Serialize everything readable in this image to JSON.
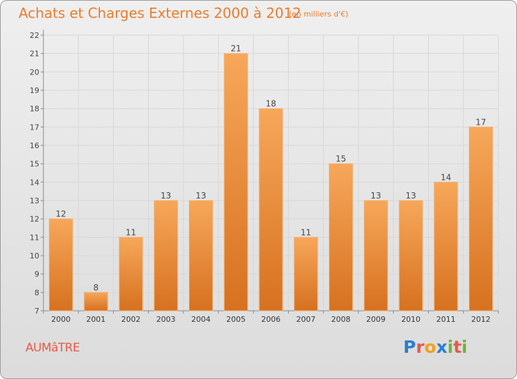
{
  "chart_data": {
    "type": "bar",
    "title": "Achats et Charges Externes 2000 à 2012",
    "subtitle": "(en milliers d'€)",
    "categories": [
      "2000",
      "2001",
      "2002",
      "2003",
      "2004",
      "2005",
      "2006",
      "2007",
      "2008",
      "2009",
      "2010",
      "2011",
      "2012"
    ],
    "values": [
      12,
      8,
      11,
      13,
      13,
      21,
      18,
      11,
      15,
      13,
      13,
      14,
      17
    ],
    "ylim": [
      7,
      22
    ],
    "yticks": [
      7,
      8,
      9,
      10,
      11,
      12,
      13,
      14,
      15,
      16,
      17,
      18,
      19,
      20,
      21,
      22
    ],
    "grid": true,
    "xlabel": "",
    "ylabel": "",
    "bar_color_top": "#f7a75a",
    "bar_color_bottom": "#d6711f"
  },
  "location": {
    "name": "AUMâTRE",
    "color": "#e45a4a"
  },
  "brand": {
    "letters": [
      "P",
      "r",
      "o",
      "x",
      "i",
      "t",
      "i"
    ],
    "colors": [
      "#2a7fd1",
      "#e45a4a",
      "#f2a01e",
      "#2a7fd1",
      "#6db33f",
      "#e45a4a",
      "#6db33f"
    ]
  }
}
